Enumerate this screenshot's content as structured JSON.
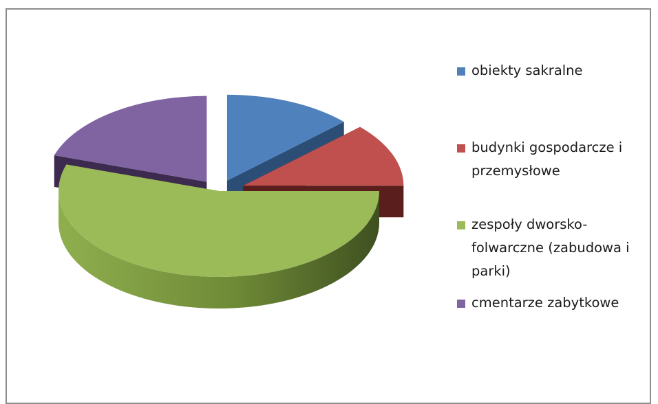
{
  "chart_data": {
    "type": "pie",
    "title": "",
    "three_d": true,
    "exploded": true,
    "legend_position": "right",
    "slices": [
      {
        "label": "obiekty sakralne",
        "value": 13,
        "color": "#4f81bd",
        "side_color": "#2c4d75"
      },
      {
        "label": "budynki gospodarcze i przemysłowe",
        "value": 12,
        "color": "#c0504d",
        "side_color": "#5a1f1c"
      },
      {
        "label": "zespoły dworsko-folwarczne (zabudowa i parki)",
        "value": 55,
        "color": "#9bbb59",
        "side_color": "#4f6228"
      },
      {
        "label": "cmentarze zabytkowe",
        "value": 20,
        "color": "#8064a2",
        "side_color": "#3c2a4f"
      }
    ]
  }
}
